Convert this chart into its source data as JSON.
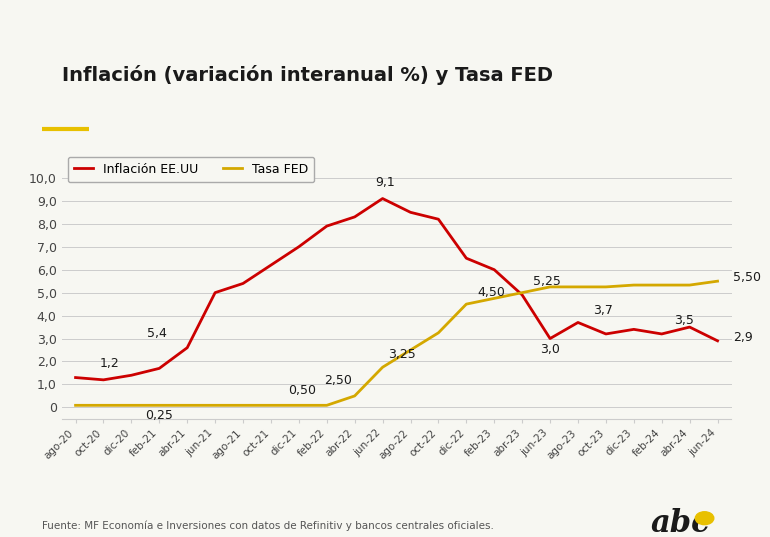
{
  "title": "Inflación (variación interanual %) y Tasa FED",
  "title_color": "#1a1a1a",
  "title_underline_color": "#e8c000",
  "background_color": "#f7f7f2",
  "legend_labels": [
    "Inflación EE.UU",
    "Tasa FED"
  ],
  "legend_colors": [
    "#cc0000",
    "#d4a800"
  ],
  "source_text": "Fuente: MF Economía e Inversiones con datos de Refinitiv y bancos centrales oficiales.",
  "x_labels": [
    "ago-20",
    "oct-20",
    "dic-20",
    "feb-21",
    "abr-21",
    "jun-21",
    "ago-21",
    "oct-21",
    "dic-21",
    "feb-22",
    "abr-22",
    "jun-22",
    "ago-22",
    "oct-22",
    "dic-22",
    "feb-23",
    "abr-23",
    "jun-23",
    "ago-23",
    "oct-23",
    "dic-23",
    "feb-24",
    "abr-24",
    "jun-24"
  ],
  "inflation_values": [
    1.3,
    1.2,
    1.4,
    1.7,
    2.6,
    5.0,
    5.4,
    6.2,
    7.0,
    7.9,
    8.3,
    9.1,
    8.5,
    8.2,
    6.5,
    6.0,
    4.9,
    3.0,
    3.7,
    3.2,
    3.4,
    3.2,
    3.5,
    2.9
  ],
  "fed_values": [
    0.09,
    0.09,
    0.09,
    0.09,
    0.09,
    0.09,
    0.09,
    0.09,
    0.09,
    0.09,
    0.5,
    1.75,
    2.5,
    3.25,
    4.5,
    4.75,
    5.0,
    5.25,
    5.25,
    5.25,
    5.33,
    5.33,
    5.33,
    5.5
  ],
  "inflation_line_color": "#cc0000",
  "fed_line_color": "#d4a800",
  "grid_color": "#cccccc",
  "y_ticks": [
    0,
    1.0,
    2.0,
    3.0,
    4.0,
    5.0,
    6.0,
    7.0,
    8.0,
    9.0,
    10.0
  ],
  "y_tick_labels": [
    "0",
    "1,0",
    "2,0",
    "3,0",
    "4,0",
    "5,0",
    "6,0",
    "7,0",
    "8,0",
    "9,0",
    "10,0"
  ],
  "ylim": [
    -0.5,
    11.2
  ]
}
